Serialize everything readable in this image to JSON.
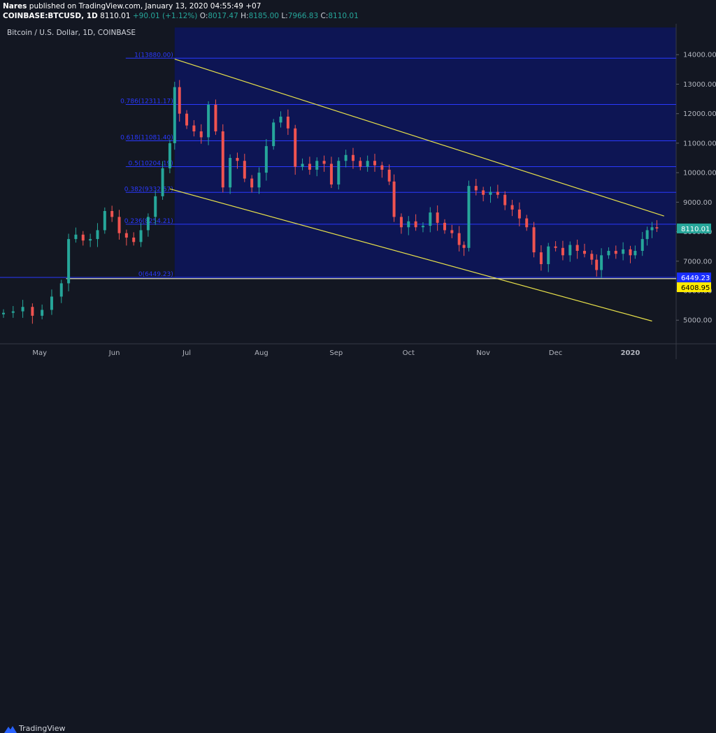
{
  "header": {
    "author": "Nares",
    "published": "published on TradingView.com, January 13, 2020 04:55:49 +07",
    "symbol": "COINBASE:BTCUSD, 1D",
    "last": "8110.01",
    "change": "+90.01 (+1.12%)",
    "open_label": "O:",
    "open": "8017.47",
    "high_label": "H:",
    "high": "8185.00",
    "low_label": "L:",
    "low": "7966.83",
    "close_label": "C:",
    "close": "8110.01"
  },
  "footer": {
    "brand": "TradingView"
  },
  "colors": {
    "background": "#131722",
    "shade": "#0d1554",
    "up": "#26a69a",
    "down": "#ef5350",
    "fib_line": "#2a39ff",
    "channel": "#e8e14a",
    "last_price_bg": "#26a69a",
    "tag_blue": "#1a2eff",
    "tag_yellow": "#ffeb00"
  },
  "chart_data": {
    "type": "candlestick",
    "title": "Bitcoin / U.S. Dollar, 1D, COINBASE",
    "xlabel": "",
    "ylabel": "",
    "ylim": [
      4200,
      15000
    ],
    "x_range": [
      "2019-04-16",
      "2020-01-20"
    ],
    "x_ticks": [
      {
        "date": "2019-05-01",
        "label": "May"
      },
      {
        "date": "2019-06-01",
        "label": "Jun"
      },
      {
        "date": "2019-07-01",
        "label": "Jul"
      },
      {
        "date": "2019-08-01",
        "label": "Aug"
      },
      {
        "date": "2019-09-01",
        "label": "Sep"
      },
      {
        "date": "2019-10-01",
        "label": "Oct"
      },
      {
        "date": "2019-11-01",
        "label": "Nov"
      },
      {
        "date": "2019-12-01",
        "label": "Dec"
      },
      {
        "date": "2020-01-01",
        "label": "2020"
      }
    ],
    "y_ticks": [
      "14000.00",
      "13000.00",
      "12000.00",
      "11000.00",
      "10000.00",
      "9000.00",
      "8000.00",
      "7000.00",
      "6000.00",
      "5000.00"
    ],
    "price_tags": [
      {
        "label": "8110.01",
        "value": 8110.01,
        "color": "#26a69a",
        "text_color": "#ffffff"
      },
      {
        "label": "6449.23",
        "value": 6449.23,
        "color": "#1a2eff",
        "text_color": "#ffffff"
      },
      {
        "label": "6408.95",
        "value": 6408.95,
        "color": "#ffeb00",
        "text_color": "#000000"
      }
    ],
    "fib_zone": {
      "start": "2019-06-26",
      "end": "2020-01-20"
    },
    "fib_levels": [
      {
        "ratio": "1",
        "price": 13880.0
      },
      {
        "ratio": "0.786",
        "price": 12311.17
      },
      {
        "ratio": "0.618",
        "price": 11081.4
      },
      {
        "ratio": "0.5",
        "price": 10204.19
      },
      {
        "ratio": "0.382",
        "price": 9332.57
      },
      {
        "ratio": "0.236",
        "price": 8254.21
      },
      {
        "ratio": "0",
        "price": 6449.23
      }
    ],
    "horizontal_line": {
      "price": 6408.95,
      "start": "2019-05-12"
    },
    "channel_upper": [
      {
        "date": "2019-06-26",
        "price": 13850
      },
      {
        "date": "2020-01-15",
        "price": 8530
      }
    ],
    "channel_lower": [
      {
        "date": "2019-06-24",
        "price": 9450
      },
      {
        "date": "2020-01-10",
        "price": 4970
      }
    ],
    "candles_close": [
      [
        "2019-04-16",
        5250
      ],
      [
        "2019-04-20",
        5300
      ],
      [
        "2019-04-24",
        5450
      ],
      [
        "2019-04-28",
        5150
      ],
      [
        "2019-05-02",
        5350
      ],
      [
        "2019-05-06",
        5800
      ],
      [
        "2019-05-10",
        6250
      ],
      [
        "2019-05-13",
        7750
      ],
      [
        "2019-05-16",
        7900
      ],
      [
        "2019-05-19",
        7700
      ],
      [
        "2019-05-22",
        7750
      ],
      [
        "2019-05-25",
        8050
      ],
      [
        "2019-05-28",
        8700
      ],
      [
        "2019-05-31",
        8500
      ],
      [
        "2019-06-03",
        7950
      ],
      [
        "2019-06-06",
        7800
      ],
      [
        "2019-06-09",
        7650
      ],
      [
        "2019-06-12",
        8050
      ],
      [
        "2019-06-15",
        8500
      ],
      [
        "2019-06-18",
        9200
      ],
      [
        "2019-06-21",
        10150
      ],
      [
        "2019-06-24",
        11000
      ],
      [
        "2019-06-26",
        12900
      ],
      [
        "2019-06-28",
        12000
      ],
      [
        "2019-07-01",
        11600
      ],
      [
        "2019-07-04",
        11400
      ],
      [
        "2019-07-07",
        11200
      ],
      [
        "2019-07-10",
        12300
      ],
      [
        "2019-07-13",
        11400
      ],
      [
        "2019-07-16",
        9500
      ],
      [
        "2019-07-19",
        10500
      ],
      [
        "2019-07-22",
        10400
      ],
      [
        "2019-07-25",
        9800
      ],
      [
        "2019-07-28",
        9500
      ],
      [
        "2019-07-31",
        10000
      ],
      [
        "2019-08-03",
        10900
      ],
      [
        "2019-08-06",
        11700
      ],
      [
        "2019-08-09",
        11900
      ],
      [
        "2019-08-12",
        11500
      ],
      [
        "2019-08-15",
        10200
      ],
      [
        "2019-08-18",
        10300
      ],
      [
        "2019-08-21",
        10100
      ],
      [
        "2019-08-24",
        10400
      ],
      [
        "2019-08-27",
        10300
      ],
      [
        "2019-08-30",
        9600
      ],
      [
        "2019-09-02",
        10400
      ],
      [
        "2019-09-05",
        10600
      ],
      [
        "2019-09-08",
        10400
      ],
      [
        "2019-09-11",
        10200
      ],
      [
        "2019-09-14",
        10400
      ],
      [
        "2019-09-17",
        10250
      ],
      [
        "2019-09-20",
        10100
      ],
      [
        "2019-09-23",
        9700
      ],
      [
        "2019-09-25",
        8500
      ],
      [
        "2019-09-28",
        8150
      ],
      [
        "2019-10-01",
        8350
      ],
      [
        "2019-10-04",
        8150
      ],
      [
        "2019-10-07",
        8200
      ],
      [
        "2019-10-10",
        8650
      ],
      [
        "2019-10-13",
        8300
      ],
      [
        "2019-10-16",
        8050
      ],
      [
        "2019-10-19",
        7950
      ],
      [
        "2019-10-22",
        7550
      ],
      [
        "2019-10-24",
        7450
      ],
      [
        "2019-10-26",
        9550
      ],
      [
        "2019-10-29",
        9400
      ],
      [
        "2019-11-01",
        9250
      ],
      [
        "2019-11-04",
        9350
      ],
      [
        "2019-11-07",
        9250
      ],
      [
        "2019-11-10",
        8900
      ],
      [
        "2019-11-13",
        8750
      ],
      [
        "2019-11-16",
        8450
      ],
      [
        "2019-11-19",
        8150
      ],
      [
        "2019-11-22",
        7300
      ],
      [
        "2019-11-25",
        6900
      ],
      [
        "2019-11-28",
        7500
      ],
      [
        "2019-12-01",
        7450
      ],
      [
        "2019-12-04",
        7200
      ],
      [
        "2019-12-07",
        7550
      ],
      [
        "2019-12-10",
        7350
      ],
      [
        "2019-12-13",
        7250
      ],
      [
        "2019-12-16",
        7050
      ],
      [
        "2019-12-18",
        6700
      ],
      [
        "2019-12-20",
        7200
      ],
      [
        "2019-12-23",
        7350
      ],
      [
        "2019-12-26",
        7250
      ],
      [
        "2019-12-29",
        7400
      ],
      [
        "2020-01-01",
        7200
      ],
      [
        "2020-01-03",
        7350
      ],
      [
        "2020-01-06",
        7750
      ],
      [
        "2020-01-08",
        8050
      ],
      [
        "2020-01-10",
        8150
      ],
      [
        "2020-01-12",
        8110
      ]
    ]
  }
}
